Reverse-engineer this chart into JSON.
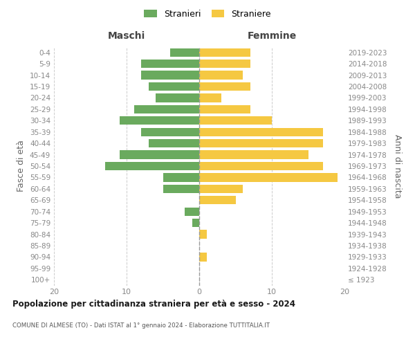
{
  "age_groups": [
    "100+",
    "95-99",
    "90-94",
    "85-89",
    "80-84",
    "75-79",
    "70-74",
    "65-69",
    "60-64",
    "55-59",
    "50-54",
    "45-49",
    "40-44",
    "35-39",
    "30-34",
    "25-29",
    "20-24",
    "15-19",
    "10-14",
    "5-9",
    "0-4"
  ],
  "birth_years": [
    "≤ 1923",
    "1924-1928",
    "1929-1933",
    "1934-1938",
    "1939-1943",
    "1944-1948",
    "1949-1953",
    "1954-1958",
    "1959-1963",
    "1964-1968",
    "1969-1973",
    "1974-1978",
    "1979-1983",
    "1984-1988",
    "1989-1993",
    "1994-1998",
    "1999-2003",
    "2004-2008",
    "2009-2013",
    "2014-2018",
    "2019-2023"
  ],
  "maschi": [
    0,
    0,
    0,
    0,
    0,
    1,
    2,
    0,
    5,
    5,
    13,
    11,
    7,
    8,
    11,
    9,
    6,
    7,
    8,
    8,
    4
  ],
  "femmine": [
    0,
    0,
    1,
    0,
    1,
    0,
    0,
    5,
    6,
    19,
    17,
    15,
    17,
    17,
    10,
    7,
    3,
    7,
    6,
    7,
    7
  ],
  "maschi_color": "#6aaa5e",
  "femmine_color": "#f5c842",
  "title": "Popolazione per cittadinanza straniera per età e sesso - 2024",
  "subtitle": "COMUNE DI ALMESE (TO) - Dati ISTAT al 1° gennaio 2024 - Elaborazione TUTTITALIA.IT",
  "label_maschi": "Maschi",
  "label_femmine": "Femmine",
  "ylabel_left": "Fasce di età",
  "ylabel_right": "Anni di nascita",
  "legend_stranieri": "Stranieri",
  "legend_straniere": "Straniere",
  "xlim": 20,
  "background_color": "#ffffff",
  "grid_color": "#cccccc",
  "bar_height": 0.75,
  "tick_color": "#888888",
  "label_color": "#666666",
  "header_color": "#444444"
}
